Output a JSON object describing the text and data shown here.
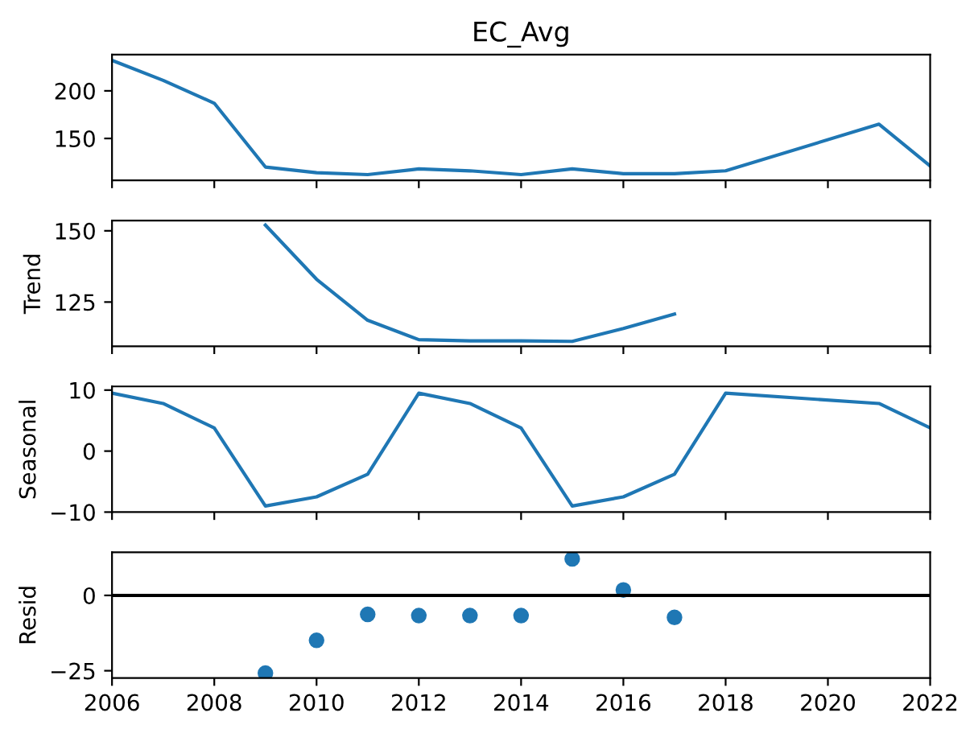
{
  "chart_data": [
    {
      "type": "line",
      "title": "EC_Avg",
      "x": [
        2006,
        2007,
        2008,
        2009,
        2010,
        2011,
        2012,
        2013,
        2014,
        2015,
        2016,
        2017,
        2018,
        2021,
        2022
      ],
      "series": [
        {
          "color": "#1f77b4",
          "values": [
            232,
            211,
            187,
            120,
            114,
            112,
            118,
            116,
            112,
            118,
            113,
            113,
            116,
            165,
            121
          ]
        }
      ],
      "xlim": [
        2006,
        2022
      ],
      "xticks": [
        2006,
        2008,
        2010,
        2012,
        2014,
        2016,
        2018,
        2020,
        2022
      ],
      "ylim": [
        106,
        238
      ],
      "yticks": [
        150,
        200
      ],
      "tick_labels": "y"
    },
    {
      "type": "line",
      "ylabel": "Trend",
      "x": [
        2009,
        2010,
        2011,
        2012,
        2013,
        2014,
        2015,
        2016,
        2017
      ],
      "series": [
        {
          "color": "#1f77b4",
          "values": [
            152,
            133,
            118.6,
            111.8,
            111.4,
            111.4,
            111.2,
            115.7,
            120.8
          ]
        }
      ],
      "xlim": [
        2006,
        2022
      ],
      "xticks": [
        2006,
        2008,
        2010,
        2012,
        2014,
        2016,
        2018,
        2020,
        2022
      ],
      "ylim": [
        109.5,
        153.6
      ],
      "yticks": [
        125,
        150
      ],
      "tick_labels": "y"
    },
    {
      "type": "line",
      "ylabel": "Seasonal",
      "x": [
        2006,
        2007,
        2008,
        2009,
        2010,
        2011,
        2012,
        2013,
        2014,
        2015,
        2016,
        2017,
        2018,
        2021,
        2022
      ],
      "series": [
        {
          "color": "#1f77b4",
          "values": [
            9.5,
            7.8,
            3.8,
            -9,
            -7.5,
            -3.8,
            9.5,
            7.8,
            3.8,
            -9,
            -7.5,
            -3.8,
            9.5,
            7.8,
            3.8
          ]
        }
      ],
      "xlim": [
        2006,
        2022
      ],
      "xticks": [
        2006,
        2008,
        2010,
        2012,
        2014,
        2016,
        2018,
        2020,
        2022
      ],
      "ylim": [
        -10,
        10.6
      ],
      "yticks": [
        {
          "value": -10,
          "label": "−10"
        },
        0,
        10
      ],
      "tick_labels": "y"
    },
    {
      "type": "scatter",
      "ylabel": "Resid",
      "x": [
        2009,
        2010,
        2011,
        2012,
        2013,
        2014,
        2015,
        2016,
        2017
      ],
      "series": [
        {
          "color": "#1f77b4",
          "values": [
            -25.8,
            -14.9,
            -6.3,
            -6.7,
            -6.7,
            -6.7,
            12.1,
            1.8,
            -7.3
          ]
        }
      ],
      "marker": "circle",
      "ref_lines": [
        {
          "axis": "y",
          "value": 0,
          "color": "#000000"
        }
      ],
      "xlim": [
        2006,
        2022
      ],
      "xticks": [
        2006,
        2008,
        2010,
        2012,
        2014,
        2016,
        2018,
        2020,
        2022
      ],
      "ylim": [
        -27.4,
        14.3
      ],
      "yticks": [
        {
          "value": -25,
          "label": "−25"
        },
        0
      ]
    }
  ]
}
